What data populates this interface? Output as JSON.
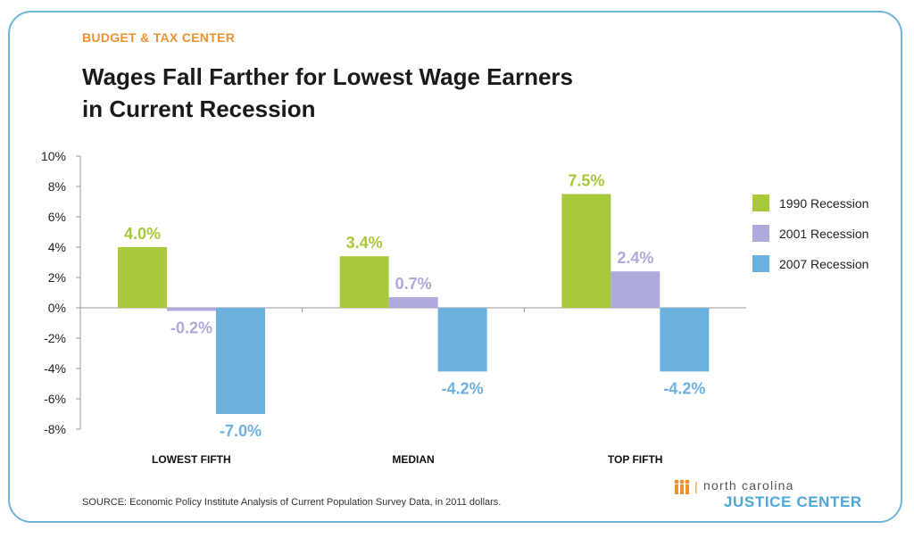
{
  "header": {
    "kicker": "BUDGET & TAX CENTER",
    "title_line1": "Wages Fall Farther for Lowest Wage Earners",
    "title_line2": "in Current Recession"
  },
  "footer": {
    "source": "SOURCE:  Economic Policy Institute Analysis of Current Population Survey Data, in 2011 dollars.",
    "logo_line1": "north carolina",
    "logo_line2": "JUSTICE CENTER"
  },
  "chart_data": {
    "type": "bar",
    "title": "Wages Fall Farther for Lowest Wage Earners in Current Recession",
    "categories": [
      "LOWEST FIFTH",
      "MEDIAN",
      "TOP FIFTH"
    ],
    "series": [
      {
        "name": "1990 Recession",
        "color": "#a8c93a",
        "values": [
          4.0,
          3.4,
          7.5
        ],
        "labels": [
          "4.0%",
          "3.4%",
          "7.5%"
        ]
      },
      {
        "name": "2001 Recession",
        "color": "#aeaadb",
        "values": [
          -0.2,
          0.7,
          2.4
        ],
        "labels": [
          "-0.2%",
          "0.7%",
          "2.4%"
        ]
      },
      {
        "name": "2007 Recession",
        "color": "#6db2df",
        "values": [
          -7.0,
          -4.2,
          -4.2
        ],
        "labels": [
          "-7.0%",
          "-4.2%",
          "-4.2%"
        ]
      }
    ],
    "ylim": [
      -8,
      10
    ],
    "yticks": [
      10,
      8,
      6,
      4,
      2,
      0,
      -2,
      -4,
      -6,
      -8
    ],
    "ytick_labels": [
      "10%",
      "8%",
      "6%",
      "4%",
      "2%",
      "0%",
      "-2%",
      "-4%",
      "-6%",
      "-8%"
    ],
    "legend_position": "right",
    "grid": false
  }
}
